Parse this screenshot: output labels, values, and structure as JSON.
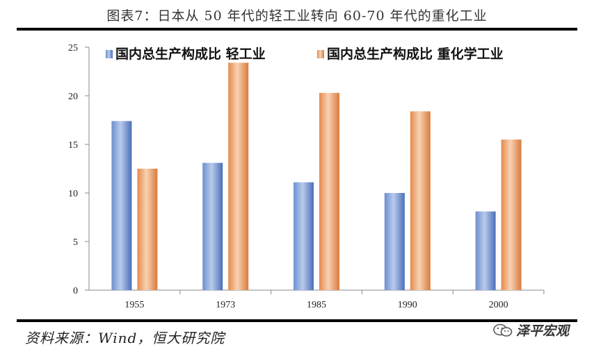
{
  "figure_title": "图表7：日本从 50 年代的轻工业转向 60-70 年代的重化工业",
  "source": "资料来源：Wind，恒大研究院",
  "watermark": "泽平宏观",
  "chart_data": {
    "type": "bar",
    "categories": [
      "1955",
      "1973",
      "1985",
      "1990",
      "2000"
    ],
    "series": [
      {
        "name": "国内总生产构成比   轻工业",
        "values": [
          17.4,
          13.1,
          11.1,
          10.0,
          8.1
        ],
        "color": "#5b7fc7"
      },
      {
        "name": "国内总生产构成比   重化学工业",
        "values": [
          12.5,
          23.4,
          20.3,
          18.4,
          15.5
        ],
        "color": "#e8965c"
      }
    ],
    "ylim": [
      0,
      25
    ],
    "yticks": [
      "0",
      "5",
      "10",
      "15",
      "20",
      "25"
    ],
    "grid": false,
    "legend": "top"
  }
}
